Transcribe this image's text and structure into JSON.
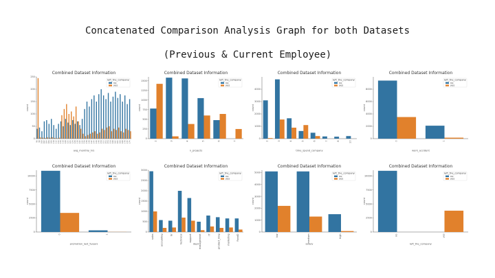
{
  "slide": {
    "title_line1": "Concatenated Comparison Analysis Graph for both Datasets",
    "title_line2": "(Previous & Current Employee)"
  },
  "colors": {
    "no": "#3274a1",
    "yes": "#e1812c"
  },
  "legend": {
    "title": "left_the_company",
    "no": "no",
    "yes": "yes"
  },
  "chart_data": [
    {
      "type": "bar",
      "title": "Combined Dataset Information",
      "xlabel": "avg_monthly_hrs",
      "ylabel": "count",
      "ylim": [
        0,
        250
      ],
      "yticks": [
        0,
        50,
        100,
        150,
        200,
        250
      ],
      "categories": [
        "96",
        "98",
        "100",
        "102",
        "104",
        "106",
        "108",
        "110",
        "112",
        "114",
        "116",
        "118",
        "120",
        "122",
        "124",
        "126",
        "128",
        "130",
        "132",
        "134",
        "136",
        "138",
        "140",
        "142",
        "144",
        "146",
        "148",
        "150",
        "152",
        "154",
        "156",
        "158",
        "160",
        "162",
        "164",
        "166",
        "168",
        "170",
        "172",
        "174"
      ],
      "series": [
        {
          "name": "no",
          "values": [
            40,
            45,
            30,
            70,
            75,
            60,
            80,
            55,
            40,
            60,
            70,
            50,
            80,
            65,
            55,
            75,
            60,
            70,
            55,
            80,
            120,
            150,
            130,
            160,
            175,
            150,
            180,
            200,
            175,
            160,
            185,
            150,
            170,
            190,
            165,
            180,
            150,
            175,
            140,
            160
          ]
        },
        {
          "name": "yes",
          "values": [
            245,
            5,
            4,
            3,
            5,
            4,
            6,
            3,
            2,
            4,
            95,
            120,
            140,
            100,
            110,
            90,
            130,
            70,
            40,
            20,
            10,
            15,
            20,
            25,
            30,
            20,
            25,
            40,
            35,
            45,
            50,
            30,
            40,
            35,
            45,
            30,
            25,
            40,
            35,
            30
          ]
        }
      ]
    },
    {
      "type": "bar",
      "title": "Combined Dataset Information",
      "xlabel": "n_projects",
      "ylabel": "count",
      "ylim": [
        0,
        1600
      ],
      "yticks": [
        0,
        250,
        500,
        750,
        1000,
        1250,
        1500
      ],
      "categories": [
        "2",
        "3",
        "4",
        "5",
        "6",
        "7"
      ],
      "series": [
        {
          "name": "no",
          "values": [
            780,
            1580,
            1560,
            1050,
            480,
            0
          ]
        },
        {
          "name": "yes",
          "values": [
            1420,
            60,
            380,
            600,
            640,
            250
          ]
        }
      ]
    },
    {
      "type": "bar",
      "title": "Combined Dataset Information",
      "xlabel": "time_spend_company",
      "ylabel": "count",
      "ylim": [
        0,
        5000
      ],
      "yticks": [
        0,
        1000,
        2000,
        3000,
        4000
      ],
      "categories": [
        "2",
        "3",
        "4",
        "5",
        "6",
        "7",
        "8",
        "10"
      ],
      "series": [
        {
          "name": "no",
          "values": [
            3100,
            4800,
            1650,
            620,
            480,
            180,
            160,
            210
          ]
        },
        {
          "name": "yes",
          "values": [
            50,
            1550,
            890,
            1100,
            210,
            0,
            0,
            0
          ]
        }
      ]
    },
    {
      "type": "bar",
      "title": "Combined Dataset Information",
      "xlabel": "work_accident",
      "ylabel": "count",
      "ylim": [
        0,
        10000
      ],
      "yticks": [
        0,
        2000,
        4000,
        6000,
        8000
      ],
      "categories": [
        "0",
        "1"
      ],
      "series": [
        {
          "name": "no",
          "values": [
            9400,
            2100
          ]
        },
        {
          "name": "yes",
          "values": [
            3500,
            160
          ]
        }
      ]
    },
    {
      "type": "bar",
      "title": "Combined Dataset Information",
      "xlabel": "promotion_last_5years",
      "ylabel": "count",
      "ylim": [
        0,
        11000
      ],
      "yticks": [
        0,
        2500,
        5000,
        7500,
        10000
      ],
      "categories": [
        "0",
        "1"
      ],
      "series": [
        {
          "name": "no",
          "values": [
            10900,
            300
          ]
        },
        {
          "name": "yes",
          "values": [
            3400,
            20
          ]
        }
      ]
    },
    {
      "type": "bar",
      "title": "Combined Dataset Information",
      "xlabel": "dept",
      "ylabel": "count",
      "ylim": [
        0,
        3000
      ],
      "yticks": [
        0,
        500,
        1000,
        1500,
        2000,
        2500,
        3000
      ],
      "categories": [
        "sales",
        "accounting",
        "hr",
        "technical",
        "support",
        "management",
        "IT",
        "product_mng",
        "marketing",
        "RandD"
      ],
      "series": [
        {
          "name": "no",
          "values": [
            2950,
            580,
            550,
            2000,
            1650,
            500,
            800,
            720,
            660,
            660
          ]
        },
        {
          "name": "yes",
          "values": [
            1000,
            200,
            220,
            700,
            550,
            90,
            270,
            200,
            220,
            120
          ]
        }
      ]
    },
    {
      "type": "bar",
      "title": "Combined Dataset Information",
      "xlabel": "salary",
      "ylabel": "count",
      "ylim": [
        0,
        5200
      ],
      "yticks": [
        0,
        1000,
        2000,
        3000,
        4000,
        5000
      ],
      "categories": [
        "low",
        "medium",
        "high"
      ],
      "series": [
        {
          "name": "no",
          "values": [
            5100,
            5100,
            1500
          ]
        },
        {
          "name": "yes",
          "values": [
            2200,
            1300,
            80
          ]
        }
      ]
    },
    {
      "type": "bar",
      "title": "Combined Dataset Information",
      "xlabel": "left_the_company",
      "ylabel": "count",
      "ylim": [
        0,
        11000
      ],
      "yticks": [
        0,
        2500,
        5000,
        7500,
        10000
      ],
      "categories": [
        "no",
        "yes"
      ],
      "series": [
        {
          "name": "no",
          "values": [
            10900,
            0
          ]
        },
        {
          "name": "yes",
          "values": [
            0,
            3800
          ]
        }
      ]
    }
  ]
}
